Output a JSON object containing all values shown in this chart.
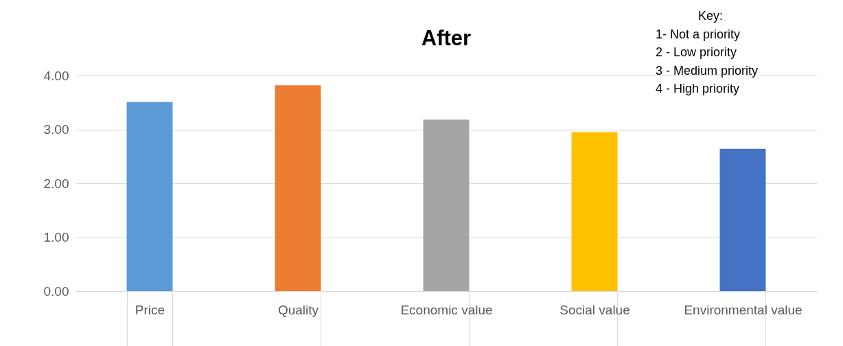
{
  "chart_data": {
    "type": "bar",
    "title": "After",
    "categories": [
      "Price",
      "Quality",
      "Economic value",
      "Social value",
      "Environmental value"
    ],
    "values": [
      3.51,
      3.82,
      3.18,
      2.95,
      2.64
    ],
    "colors": [
      "#5b9bd5",
      "#ed7d31",
      "#a5a5a5",
      "#ffc000",
      "#4472c4"
    ],
    "ylim": [
      0,
      4
    ],
    "yticks": [
      {
        "value": 0,
        "label": "0.00"
      },
      {
        "value": 1,
        "label": "1.00"
      },
      {
        "value": 2,
        "label": "2.00"
      },
      {
        "value": 3,
        "label": "3.00"
      },
      {
        "value": 4,
        "label": "4.00"
      }
    ],
    "grid": "y",
    "legend": false,
    "annotations": [
      "Key:",
      "1-  Not a priority",
      "2 - Low priority",
      "3 - Medium priority",
      "4 - High priority"
    ]
  }
}
